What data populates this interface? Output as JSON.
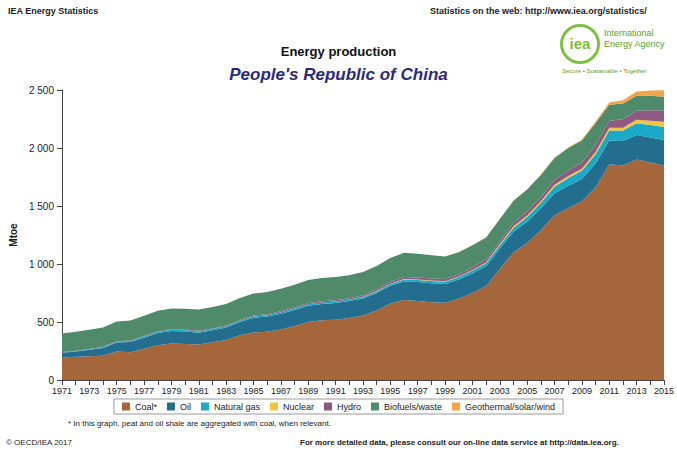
{
  "header_left": "IEA Energy Statistics",
  "header_right": "Statistics on the web: http://www.iea.org/statistics/",
  "logo": {
    "mark": "iea",
    "name": "International Energy Agency",
    "tagline": "Secure • Sustainable • Together"
  },
  "footnote": "* In this graph, peat and oil shale are aggregated with coal, when relevant.",
  "copyright": "© OECD/IEA 2017",
  "footer": "For more detailed data, please consult our on-line data service at http://data.iea.org.",
  "chart_data": {
    "type": "area",
    "title": "Energy production",
    "subtitle": "People's Republic of China",
    "y_label": "Mtoe",
    "stacked": true,
    "grid": false,
    "legend": "bottom",
    "categories": [
      "1971",
      null,
      "1973",
      null,
      "1975",
      null,
      "1977",
      null,
      "1979",
      null,
      "1981",
      null,
      "1983",
      null,
      "1985",
      null,
      "1987",
      null,
      "1989",
      null,
      "1991",
      null,
      "1993",
      null,
      "1995",
      null,
      "1997",
      null,
      "1999",
      null,
      "2001",
      null,
      "2003",
      null,
      "2005",
      null,
      "2007",
      null,
      "2009",
      null,
      "2011",
      null,
      "2013",
      null,
      "2015"
    ],
    "ylim": [
      0,
      2500
    ],
    "yticks": [
      0,
      500,
      {
        "value": 1000,
        "label": "1 000"
      },
      {
        "value": 1500,
        "label": "1 500"
      },
      {
        "value": 2000,
        "label": "2 000"
      },
      {
        "value": 2500,
        "label": "2 500"
      }
    ],
    "series": [
      {
        "name": "Coal*",
        "color": "#a5663b",
        "values": [
          195,
          200,
          205,
          210,
          245,
          240,
          270,
          300,
          315,
          310,
          305,
          325,
          345,
          385,
          410,
          415,
          435,
          465,
          500,
          515,
          520,
          535,
          555,
          600,
          660,
          690,
          680,
          670,
          665,
          700,
          750,
          810,
          960,
          1100,
          1180,
          1290,
          1420,
          1480,
          1540,
          1660,
          1860,
          1850,
          1900,
          1875,
          1850
        ]
      },
      {
        "name": "Oil",
        "color": "#236e8f",
        "values": [
          40,
          46,
          55,
          66,
          78,
          88,
          95,
          106,
          108,
          108,
          103,
          104,
          108,
          116,
          127,
          133,
          136,
          139,
          140,
          140,
          143,
          145,
          147,
          149,
          152,
          160,
          164,
          164,
          162,
          166,
          168,
          170,
          173,
          178,
          184,
          188,
          189,
          194,
          192,
          206,
          205,
          210,
          213,
          216,
          219
        ]
      },
      {
        "name": "Natural gas",
        "color": "#1aa9c6",
        "values": [
          3,
          4,
          5,
          6,
          7,
          8,
          10,
          11,
          12,
          12,
          11,
          10,
          10,
          10,
          11,
          11,
          12,
          12,
          13,
          13,
          13,
          13,
          14,
          15,
          15,
          17,
          19,
          19,
          21,
          23,
          25,
          27,
          29,
          34,
          41,
          49,
          58,
          67,
          71,
          80,
          86,
          90,
          101,
          108,
          112
        ]
      },
      {
        "name": "Nuclear",
        "color": "#f4c542",
        "values": [
          0,
          0,
          0,
          0,
          0,
          0,
          0,
          0,
          0,
          0,
          0,
          0,
          0,
          0,
          0,
          0,
          0,
          0,
          0,
          0,
          0,
          0,
          1,
          4,
          3,
          4,
          4,
          4,
          4,
          4,
          5,
          7,
          11,
          13,
          14,
          14,
          16,
          18,
          18,
          19,
          23,
          25,
          29,
          35,
          45
        ]
      },
      {
        "name": "Hydro",
        "color": "#8e5a80",
        "values": [
          3,
          3,
          3,
          4,
          4,
          4,
          4,
          4,
          4,
          5,
          6,
          6,
          7,
          7,
          8,
          8,
          9,
          9,
          10,
          11,
          11,
          11,
          13,
          14,
          16,
          16,
          17,
          18,
          18,
          19,
          24,
          25,
          24,
          30,
          34,
          37,
          41,
          50,
          53,
          61,
          59,
          74,
          78,
          91,
          96
        ]
      },
      {
        "name": "Biofuels/waste",
        "color": "#4f8a6b",
        "values": [
          160,
          162,
          165,
          167,
          170,
          172,
          174,
          176,
          178,
          180,
          182,
          184,
          186,
          188,
          190,
          192,
          194,
          196,
          198,
          200,
          200,
          200,
          200,
          200,
          205,
          210,
          205,
          200,
          195,
          190,
          190,
          190,
          190,
          190,
          190,
          190,
          190,
          190,
          190,
          190,
          140,
          135,
          130,
          125,
          120
        ]
      },
      {
        "name": "Geothermal/solar/wind",
        "color": "#f2a447",
        "values": [
          0,
          0,
          0,
          0,
          0,
          0,
          0,
          0,
          0,
          0,
          0,
          0,
          0,
          0,
          0,
          0,
          0,
          0,
          0,
          0,
          0,
          0,
          0,
          0,
          0,
          0,
          0,
          0,
          0,
          1,
          1,
          1,
          1,
          2,
          2,
          3,
          4,
          6,
          9,
          13,
          20,
          28,
          37,
          45,
          55
        ]
      }
    ]
  }
}
